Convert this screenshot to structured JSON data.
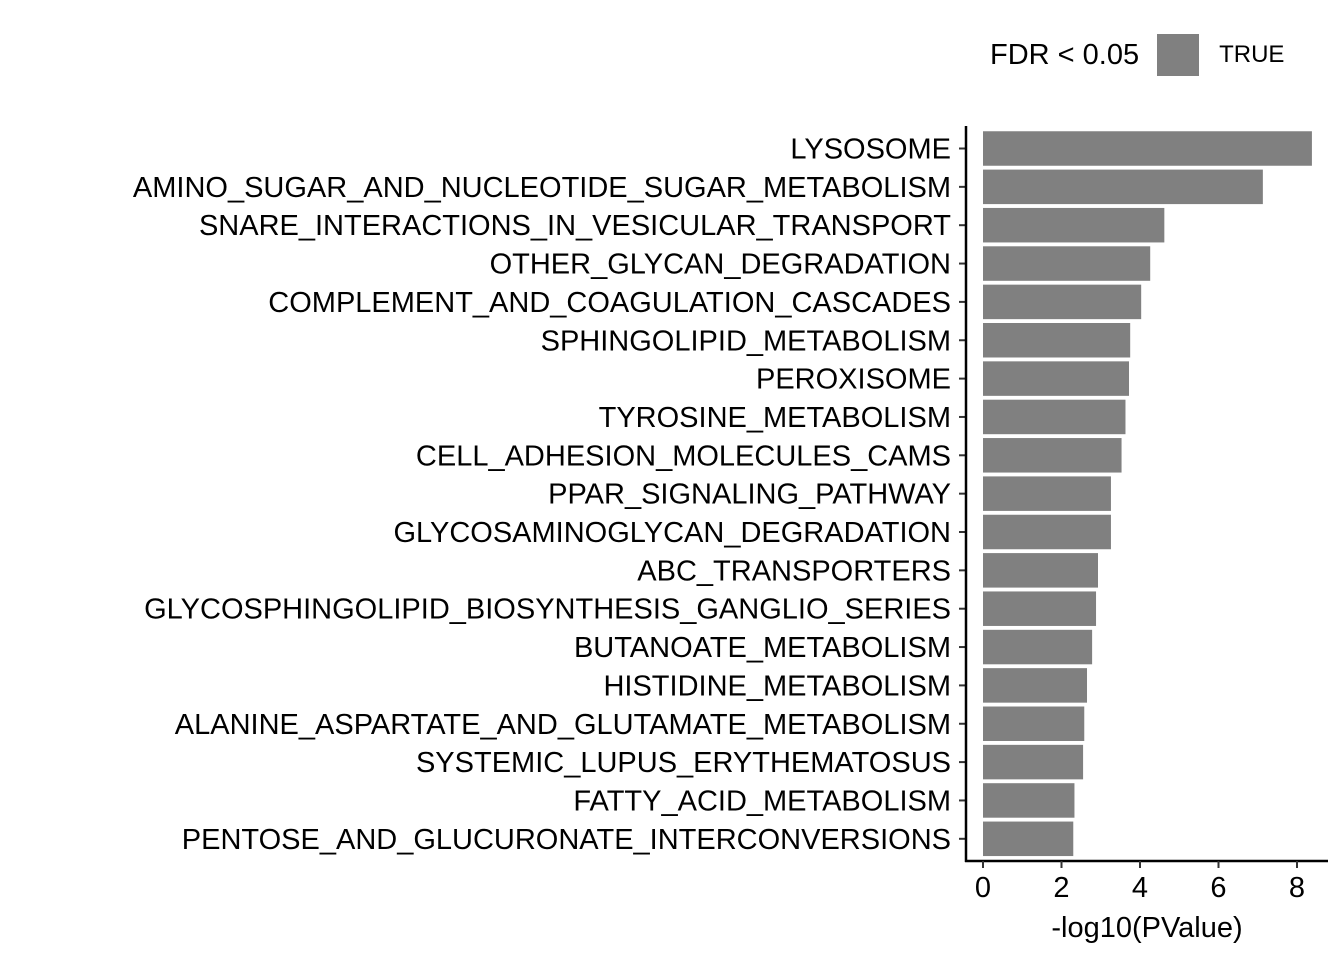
{
  "chart_data": {
    "type": "bar",
    "orientation": "horizontal",
    "categories": [
      "LYSOSOME",
      "AMINO_SUGAR_AND_NUCLEOTIDE_SUGAR_METABOLISM",
      "SNARE_INTERACTIONS_IN_VESICULAR_TRANSPORT",
      "OTHER_GLYCAN_DEGRADATION",
      "COMPLEMENT_AND_COAGULATION_CASCADES",
      "SPHINGOLIPID_METABOLISM",
      "PEROXISOME",
      "TYROSINE_METABOLISM",
      "CELL_ADHESION_MOLECULES_CAMS",
      "PPAR_SIGNALING_PATHWAY",
      "GLYCOSAMINOGLYCAN_DEGRADATION",
      "ABC_TRANSPORTERS",
      "GLYCOSPHINGOLIPID_BIOSYNTHESIS_GANGLIO_SERIES",
      "BUTANOATE_METABOLISM",
      "HISTIDINE_METABOLISM",
      "ALANINE_ASPARTATE_AND_GLUTAMATE_METABOLISM",
      "SYSTEMIC_LUPUS_ERYTHEMATOSUS",
      "FATTY_ACID_METABOLISM",
      "PENTOSE_AND_GLUCURONATE_INTERCONVERSIONS"
    ],
    "values": [
      8.38,
      7.13,
      4.62,
      4.26,
      4.03,
      3.75,
      3.72,
      3.63,
      3.53,
      3.26,
      3.26,
      2.93,
      2.88,
      2.78,
      2.65,
      2.58,
      2.55,
      2.33,
      2.3
    ],
    "xlabel": "-log10(PValue)",
    "ylabel": "",
    "xlim": [
      -0.4,
      8.75
    ],
    "xticks": [
      0,
      2,
      4,
      6,
      8
    ],
    "legend": {
      "title": "FDR < 0.05",
      "entries": [
        "TRUE"
      ],
      "position": "top-right"
    },
    "bar_color": "#808080",
    "grid": false
  }
}
